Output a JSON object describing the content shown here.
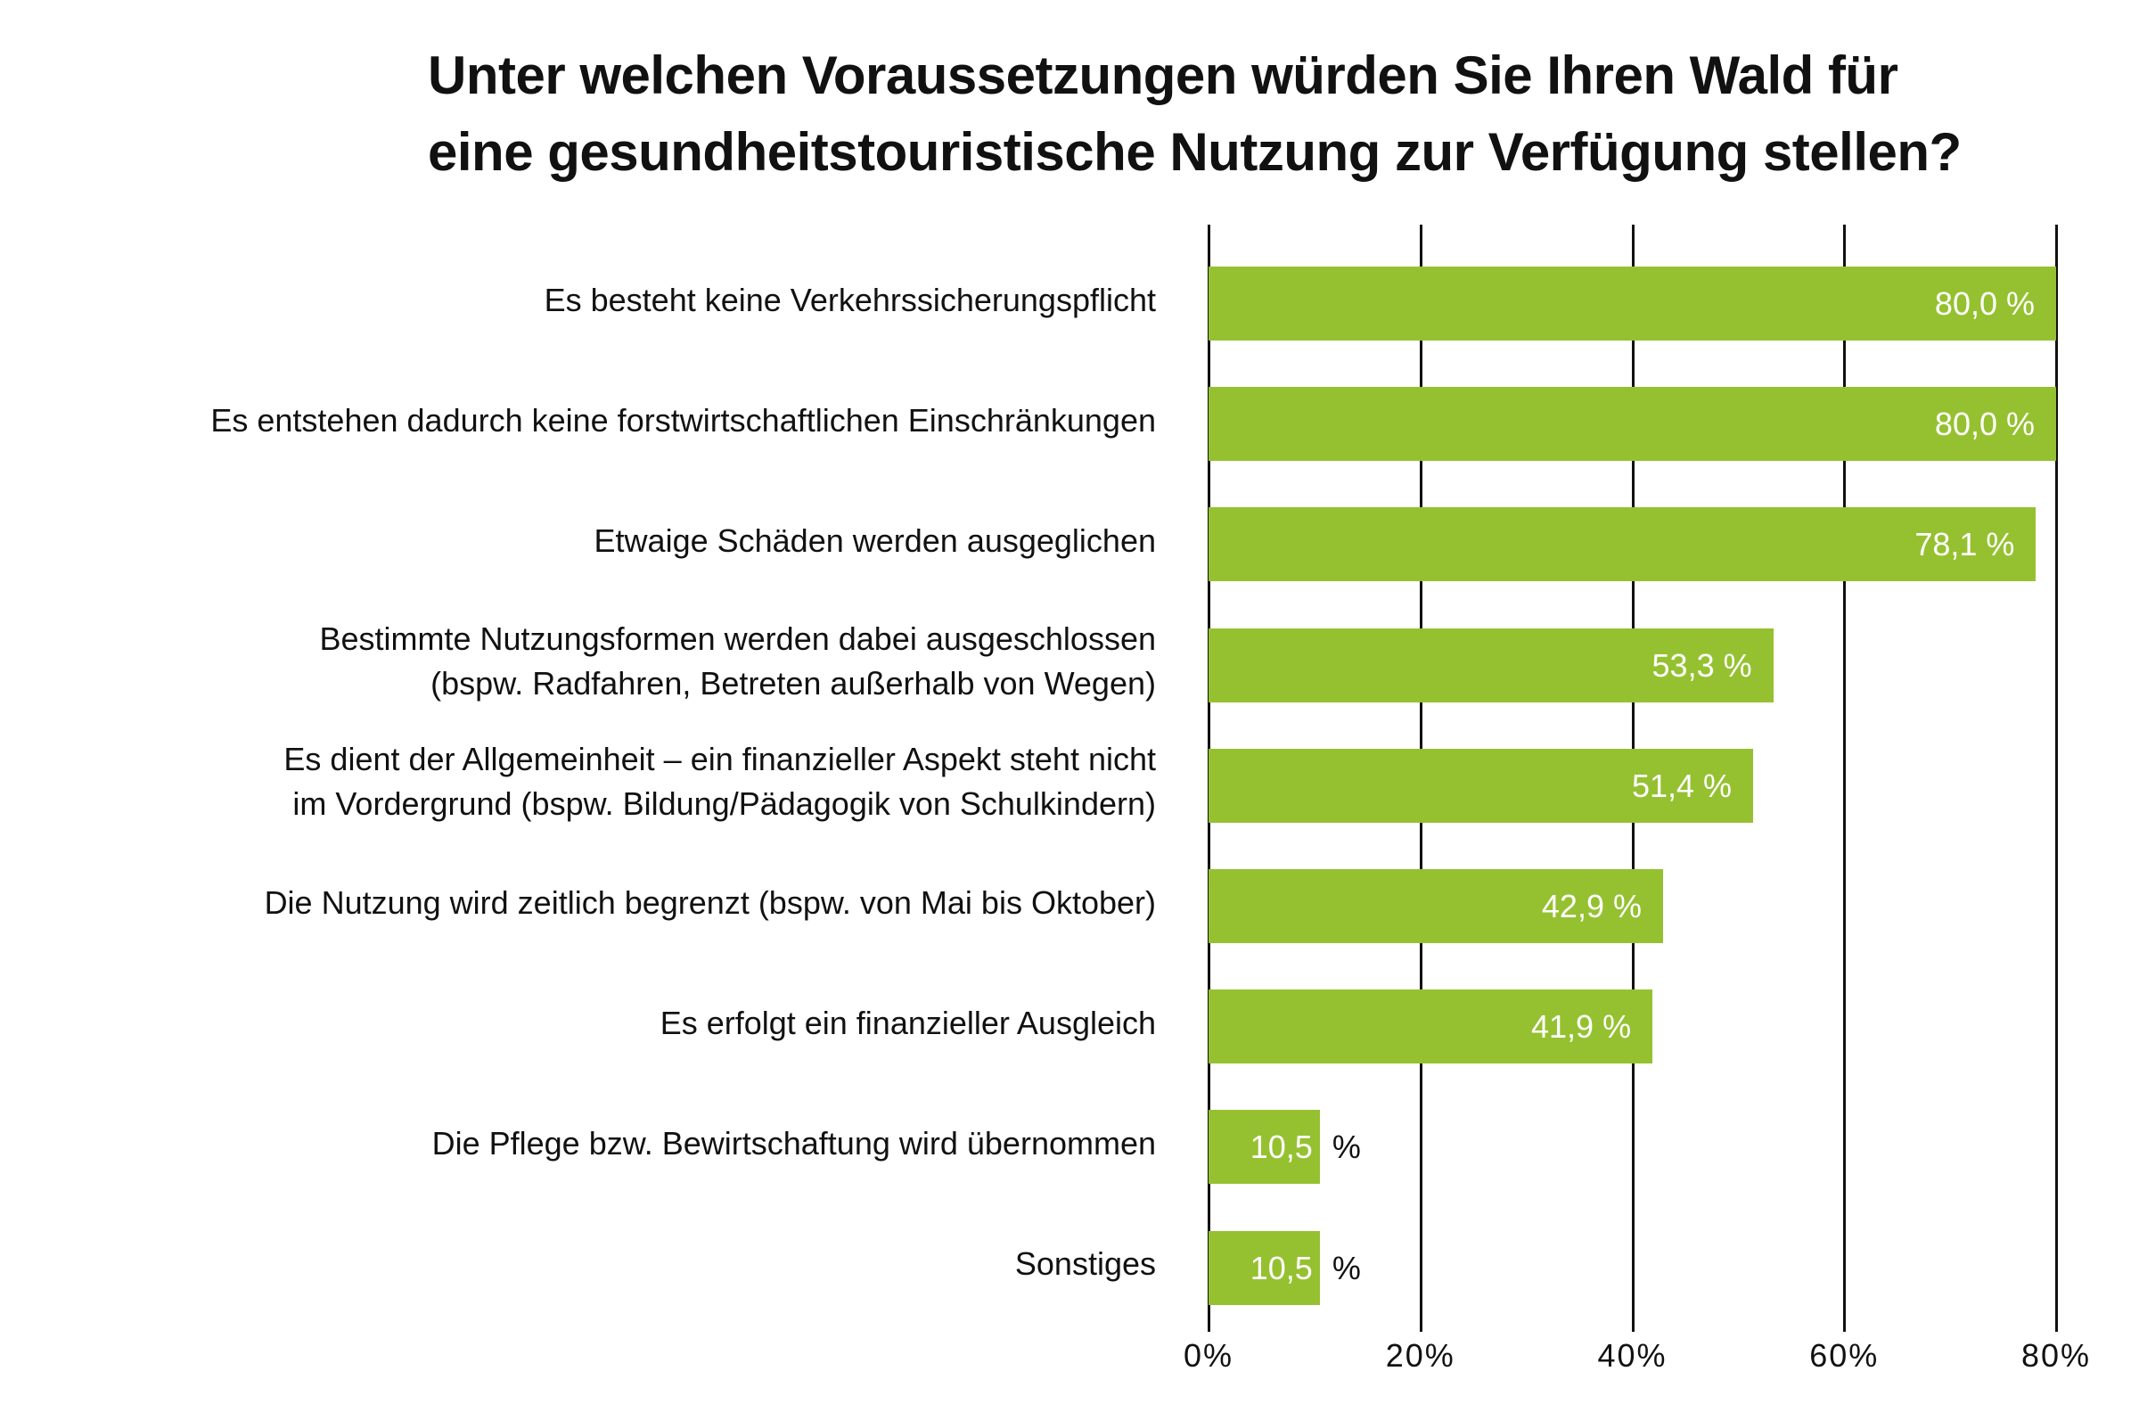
{
  "chart_data": {
    "type": "bar",
    "orientation": "horizontal",
    "title": "Unter welchen Voraussetzungen würden Sie Ihren Wald für eine gesundheitstouristische Nutzung zur Verfügung stellen?",
    "title_lines": [
      "Unter welchen Voraussetzungen würden Sie Ihren Wald für",
      "eine gesundheitstouristische Nutzung zur Verfügung stellen?"
    ],
    "categories": [
      [
        "Es besteht keine Verkehrssicherungspflicht"
      ],
      [
        "Es entstehen dadurch keine forstwirtschaftlichen Einschränkungen"
      ],
      [
        "Etwaige Schäden werden ausgeglichen"
      ],
      [
        "Bestimmte Nutzungsformen werden dabei ausgeschlossen",
        "(bspw. Radfahren, Betreten außerhalb von Wegen)"
      ],
      [
        "Es dient der Allgemeinheit – ein finanzieller Aspekt steht nicht",
        "im Vordergrund (bspw. Bildung/Pädagogik von Schulkindern)"
      ],
      [
        "Die Nutzung wird zeitlich begrenzt (bspw. von Mai bis Oktober)"
      ],
      [
        "Es erfolgt ein finanzieller Ausgleich"
      ],
      [
        "Die Pflege bzw. Bewirtschaftung wird übernommen"
      ],
      [
        "Sonstiges"
      ]
    ],
    "values": [
      80.0,
      80.0,
      78.1,
      53.3,
      51.4,
      42.9,
      41.9,
      10.5,
      10.5
    ],
    "value_labels": [
      "80,0 %",
      "80,0 %",
      "78,1 %",
      "53,3 %",
      "51,4 %",
      "42,9 %",
      "41,9 %",
      "10,5",
      "10,5"
    ],
    "value_label_suffix": "%",
    "xticks": [
      "0%",
      "20%",
      "40%",
      "60%",
      "80%"
    ],
    "xlim": [
      0,
      80
    ],
    "grid": true,
    "bar_color": "#95c131"
  }
}
